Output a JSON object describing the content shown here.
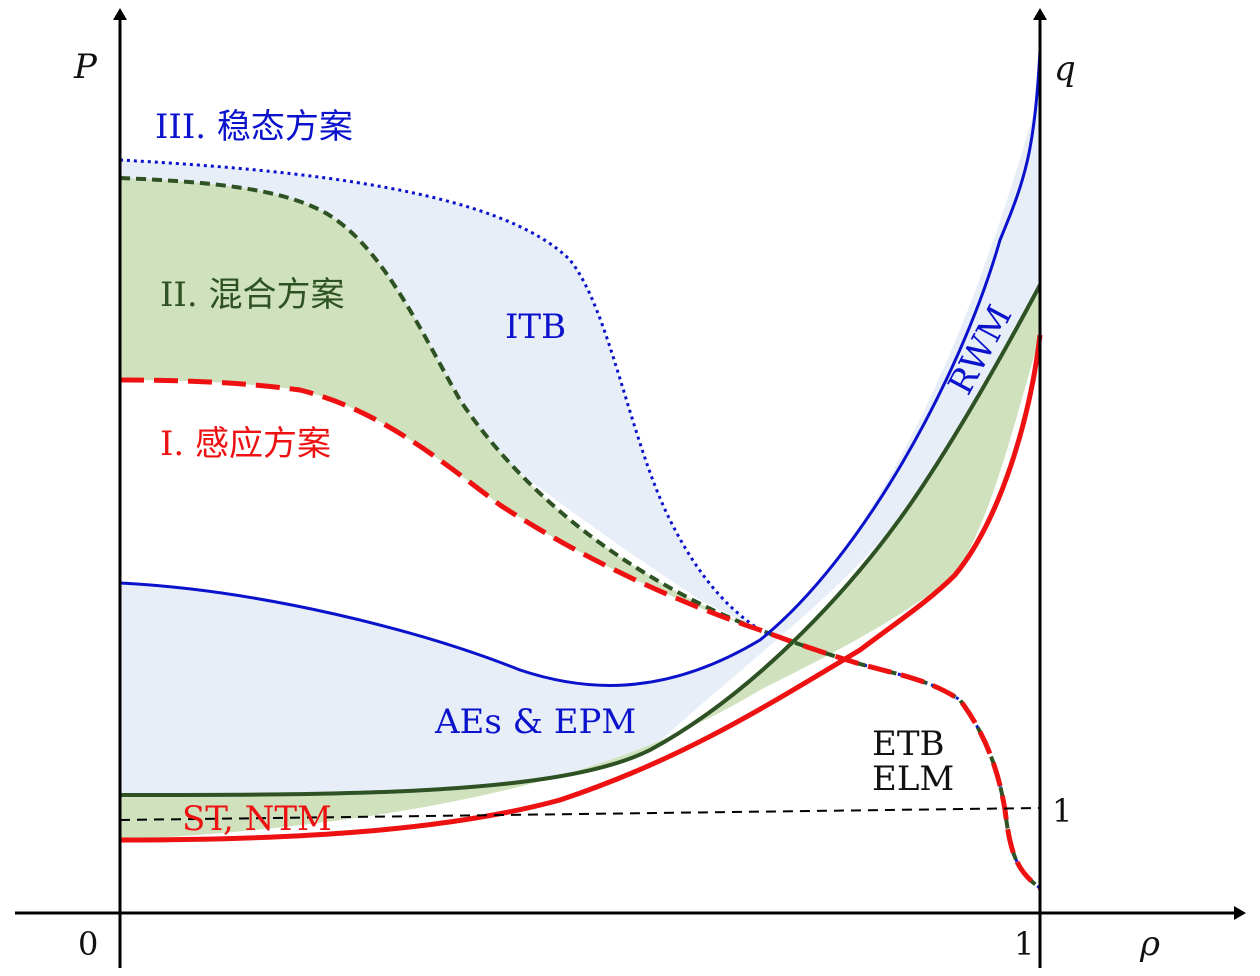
{
  "axes": {
    "left_label": "P",
    "right_label": "q",
    "x_label": "ρ",
    "origin_label": "0",
    "x_end_label": "1",
    "q_one_label": "1"
  },
  "scenarios": {
    "steady": "III. 稳态方案",
    "hybrid": "II. 混合方案",
    "inductive": "I. 感应方案"
  },
  "regions": {
    "itb": "ITB",
    "rwm": "RWM",
    "aes": "AEs & EPM",
    "etb": "ETB",
    "elm": "ELM",
    "st_ntm": "ST, NTM"
  },
  "colors": {
    "steady": "#0b12cc",
    "hybrid": "#2e5223",
    "inductive": "#ee1111",
    "fill_blue": "#e8eef8",
    "fill_green": "#cfe1bd",
    "axis": "#000000"
  }
}
